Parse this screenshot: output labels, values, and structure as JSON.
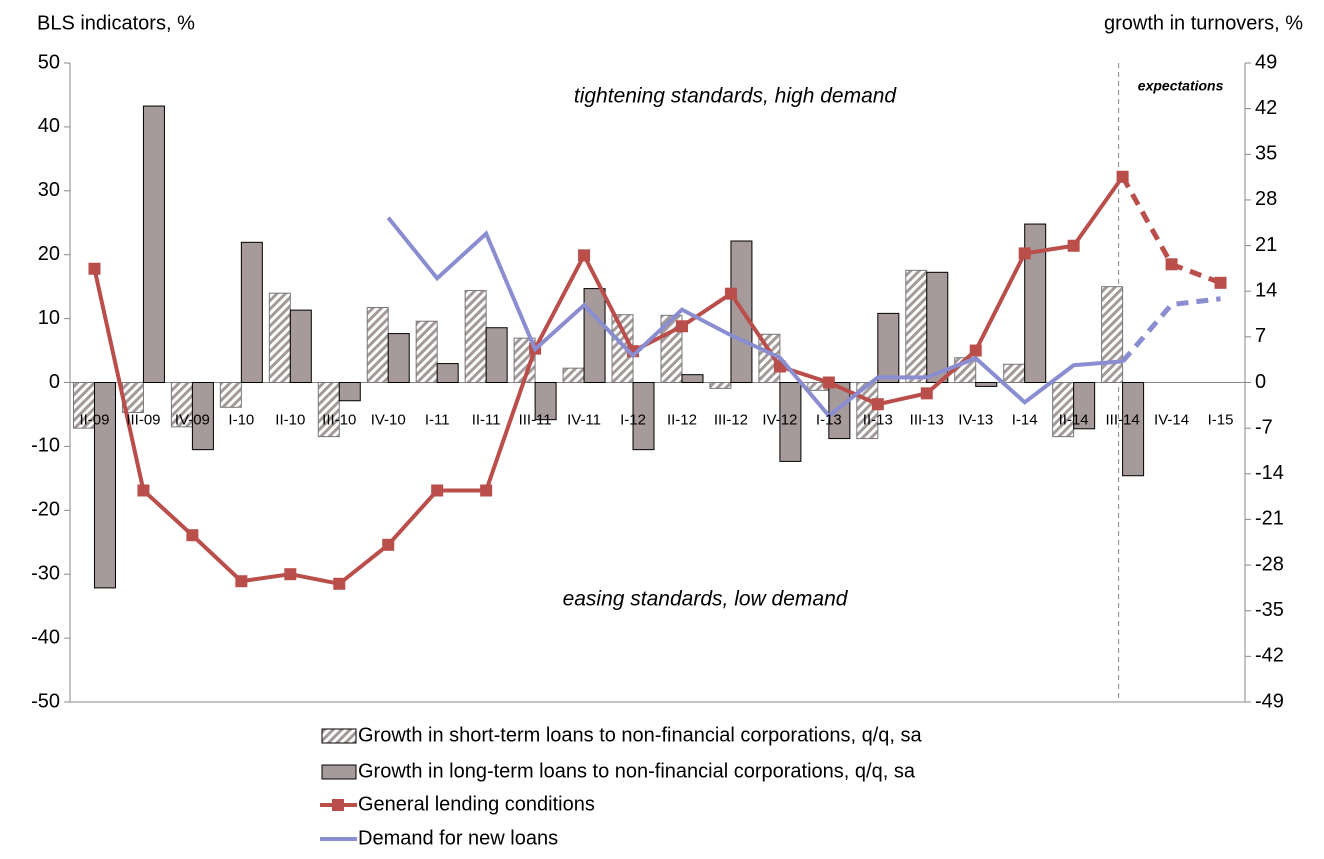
{
  "chart_data": {
    "type": "combo",
    "y_label": "BLS indicators, %",
    "y2_label": "growth in turnovers, %",
    "annotations": [
      "tightening standards, high demand",
      "easing standards, low demand"
    ],
    "expectations_label": "expectations",
    "expectations_from": "III-14",
    "categories": [
      "II-09",
      "III-09",
      "IV-09",
      "I-10",
      "II-10",
      "III-10",
      "IV-10",
      "I-11",
      "II-11",
      "III-11",
      "IV-11",
      "I-12",
      "II-12",
      "III-12",
      "IV-12",
      "I-13",
      "II-13",
      "III-13",
      "IV-13",
      "I-14",
      "II-14",
      "III-14",
      "IV-14",
      "I-15"
    ],
    "ylim": [
      -50,
      50
    ],
    "yticks": [
      -50,
      -40,
      -30,
      -20,
      -10,
      0,
      10,
      20,
      30,
      40,
      50
    ],
    "y2lim": [
      -49,
      49
    ],
    "y2ticks": [
      -49,
      -42,
      -35,
      -28,
      -21,
      -14,
      -7,
      0,
      7,
      14,
      21,
      28,
      35,
      42,
      49
    ],
    "series": [
      {
        "name": "Growth in short-term loans to non-financial corporations, q/q, sa",
        "type": "bar",
        "axis": "y2",
        "color": "#a39a99",
        "pattern": "hatch",
        "values": [
          -7.0,
          -4.6,
          -6.8,
          -3.8,
          13.7,
          -8.3,
          11.5,
          9.4,
          14.1,
          6.8,
          2.2,
          10.4,
          10.3,
          -0.9,
          7.4,
          -1.2,
          -8.6,
          17.2,
          3.8,
          2.8,
          -8.3,
          14.7,
          null,
          null
        ]
      },
      {
        "name": "Growth in long-term loans to non-financial corporations, q/q, sa",
        "type": "bar",
        "axis": "y2",
        "color": "#a69a9a",
        "pattern": "solid",
        "values": [
          -31.5,
          42.4,
          -10.3,
          21.5,
          11.1,
          -2.8,
          7.5,
          2.9,
          8.4,
          -5.7,
          14.4,
          -10.3,
          1.2,
          21.7,
          -12.1,
          -8.6,
          10.6,
          16.9,
          -0.6,
          24.3,
          -7.1,
          -14.3,
          null,
          null
        ]
      },
      {
        "name": "General lending conditions",
        "type": "line",
        "axis": "y",
        "color": "#b94e4b",
        "marker": "square",
        "values": [
          17.8,
          -16.9,
          -23.9,
          -31.1,
          -30.0,
          -31.5,
          -25.4,
          -16.9,
          -16.9,
          5.3,
          19.9,
          4.9,
          8.8,
          13.9,
          2.5,
          0,
          -3.4,
          -1.7,
          5.0,
          20.2,
          21.4,
          32.2,
          18.5,
          15.6
        ]
      },
      {
        "name": "Demand for new loans",
        "type": "line",
        "axis": "y",
        "color": "#8a8dd0",
        "marker": "none",
        "values": [
          null,
          null,
          null,
          null,
          null,
          null,
          25.8,
          16.3,
          23.3,
          5.2,
          12.1,
          4.2,
          11.4,
          7.4,
          3.9,
          -5.2,
          0.8,
          0.8,
          3.8,
          -3.1,
          2.7,
          3.3,
          12.2,
          13.1
        ]
      }
    ]
  }
}
